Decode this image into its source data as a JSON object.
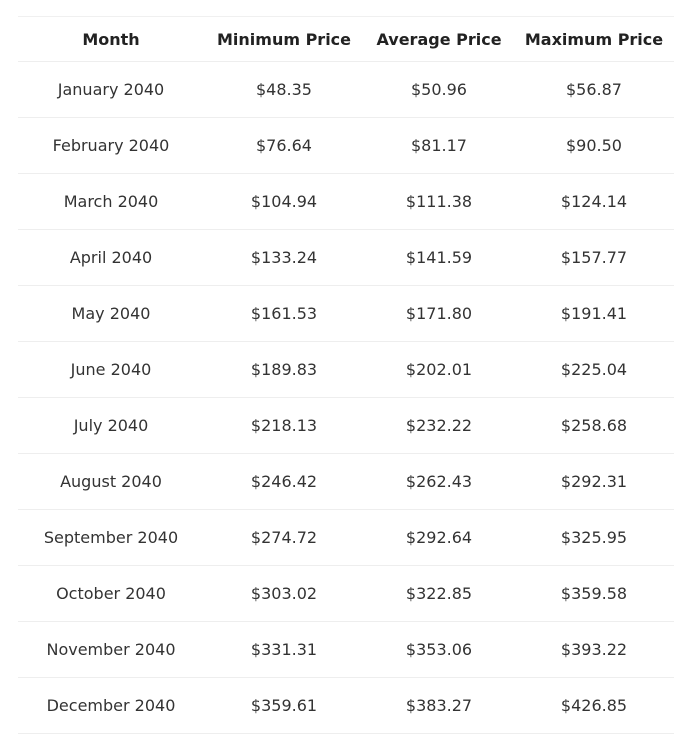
{
  "table": {
    "columns": [
      "Month",
      "Minimum Price",
      "Average Price",
      "Maximum Price"
    ],
    "rows": [
      [
        "January 2040",
        "$48.35",
        "$50.96",
        "$56.87"
      ],
      [
        "February 2040",
        "$76.64",
        "$81.17",
        "$90.50"
      ],
      [
        "March 2040",
        "$104.94",
        "$111.38",
        "$124.14"
      ],
      [
        "April 2040",
        "$133.24",
        "$141.59",
        "$157.77"
      ],
      [
        "May 2040",
        "$161.53",
        "$171.80",
        "$191.41"
      ],
      [
        "June 2040",
        "$189.83",
        "$202.01",
        "$225.04"
      ],
      [
        "July 2040",
        "$218.13",
        "$232.22",
        "$258.68"
      ],
      [
        "August 2040",
        "$246.42",
        "$262.43",
        "$292.31"
      ],
      [
        "September 2040",
        "$274.72",
        "$292.64",
        "$325.95"
      ],
      [
        "October 2040",
        "$303.02",
        "$322.85",
        "$359.58"
      ],
      [
        "November 2040",
        "$331.31",
        "$353.06",
        "$393.22"
      ],
      [
        "December 2040",
        "$359.61",
        "$383.27",
        "$426.85"
      ]
    ]
  }
}
